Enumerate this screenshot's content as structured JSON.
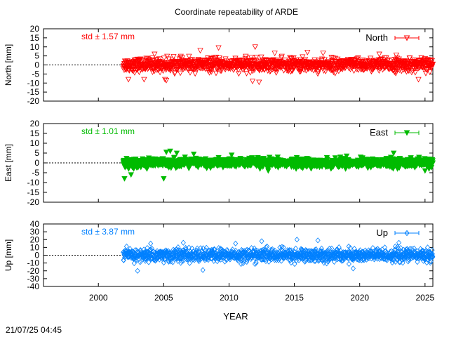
{
  "chart_data": {
    "type": "scatter",
    "title": "Coordinate repeatability of ARDE",
    "xlabel": "YEAR",
    "xlim": [
      1995.8,
      2025.6
    ],
    "xticks": [
      2000,
      2005,
      2010,
      2015,
      2020,
      2025
    ],
    "timestamp": "21/07/25 04:45",
    "panels": [
      {
        "key": "north",
        "series_name": "North",
        "ylabel": "North [mm]",
        "std_label": "std ± 1.57 mm",
        "color": "#ff0000",
        "marker": "triangle-down-open",
        "ylim": [
          -20,
          20
        ],
        "yticks": [
          -20,
          -15,
          -10,
          -5,
          0,
          5,
          10,
          15,
          20
        ],
        "data_start": 2001.9,
        "data_end": 2025.6,
        "spread": 3.2,
        "outliers": [
          [
            2005.1,
            -8
          ],
          [
            2005.2,
            -8.5
          ],
          [
            2002.3,
            -8
          ],
          [
            2012.0,
            10
          ],
          [
            2012.3,
            -9.5
          ],
          [
            2007.8,
            8
          ],
          [
            2016.0,
            7
          ],
          [
            2011.8,
            -9
          ],
          [
            2024.5,
            -8
          ],
          [
            2004.3,
            6
          ],
          [
            2009.2,
            9.5
          ],
          [
            2017.2,
            6.5
          ],
          [
            2021.5,
            6
          ],
          [
            2022.8,
            5.5
          ],
          [
            2003.5,
            -8
          ],
          [
            2013.5,
            6.5
          ]
        ]
      },
      {
        "key": "east",
        "series_name": "East",
        "ylabel": "East [mm]",
        "std_label": "std ± 1.01 mm",
        "color": "#00bb00",
        "marker": "triangle-down-filled",
        "ylim": [
          -20,
          20
        ],
        "yticks": [
          -20,
          -15,
          -10,
          -5,
          0,
          5,
          10,
          15,
          20
        ],
        "data_start": 2001.9,
        "data_end": 2025.6,
        "spread": 2.0,
        "outliers": [
          [
            2002.0,
            -8
          ],
          [
            2005.0,
            -8
          ],
          [
            2005.2,
            5.5
          ],
          [
            2005.5,
            6
          ],
          [
            2006.0,
            5
          ],
          [
            2002.5,
            -6
          ],
          [
            2022.6,
            5
          ],
          [
            2025.0,
            -4
          ],
          [
            2007.3,
            4.5
          ],
          [
            2010.2,
            4
          ],
          [
            2019.0,
            3.5
          ],
          [
            2013.0,
            -4
          ]
        ]
      },
      {
        "key": "up",
        "series_name": "Up",
        "ylabel": "Up [mm]",
        "std_label": "std ± 3.87 mm",
        "color": "#0080ff",
        "marker": "diamond-open",
        "ylim": [
          -40,
          40
        ],
        "yticks": [
          -40,
          -30,
          -20,
          -10,
          0,
          10,
          20,
          30,
          40
        ],
        "data_start": 2001.9,
        "data_end": 2025.6,
        "spread": 7.5,
        "outliers": [
          [
            2004.0,
            15
          ],
          [
            2015.2,
            20
          ],
          [
            2016.8,
            19
          ],
          [
            2012.5,
            18
          ],
          [
            2003.0,
            -20
          ],
          [
            2023.0,
            16
          ],
          [
            2008.0,
            -19
          ],
          [
            2019.5,
            -17
          ],
          [
            2006.5,
            16
          ],
          [
            2025.2,
            10
          ],
          [
            2010.5,
            15
          ]
        ]
      }
    ]
  }
}
